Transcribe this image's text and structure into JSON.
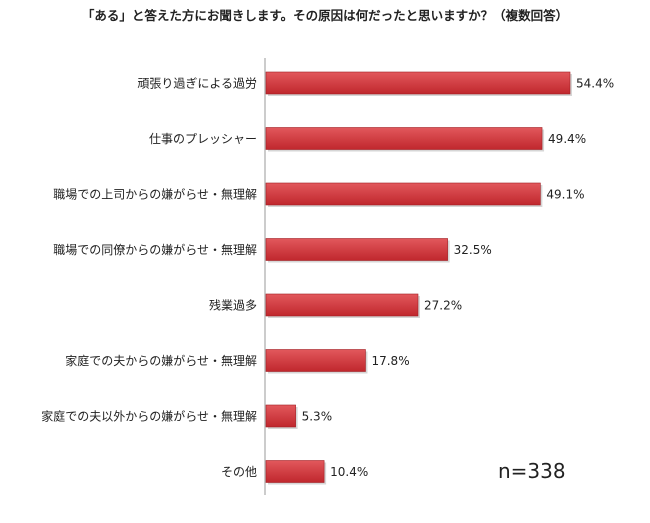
{
  "chart_data": {
    "type": "bar",
    "orientation": "horizontal",
    "title": "「ある」と答えた方にお聞きします。その原因は何だったと思いますか？（複数回答）",
    "categories": [
      "頑張り過ぎによる過労",
      "仕事のプレッシャー",
      "職場での上司からの嫌がらせ・無理解",
      "職場での同僚からの嫌がらせ・無理解",
      "残業過多",
      "家庭での夫からの嫌がらせ・無理解",
      "家庭での夫以外からの嫌がらせ・無理解",
      "その他"
    ],
    "values": [
      54.4,
      49.4,
      49.1,
      32.5,
      27.2,
      17.8,
      5.3,
      10.4
    ],
    "value_labels": [
      "54.4%",
      "49.4%",
      "49.1%",
      "32.5%",
      "27.2%",
      "17.8%",
      "5.3%",
      "10.4%"
    ],
    "unit": "%",
    "xlim": [
      0,
      60
    ],
    "grid": false,
    "legend": "none",
    "annotation": "n=338",
    "colors": {
      "bar": "#c0272d",
      "bar_highlight": "#e2585c",
      "axis": "#999999",
      "text": "#222222"
    }
  }
}
